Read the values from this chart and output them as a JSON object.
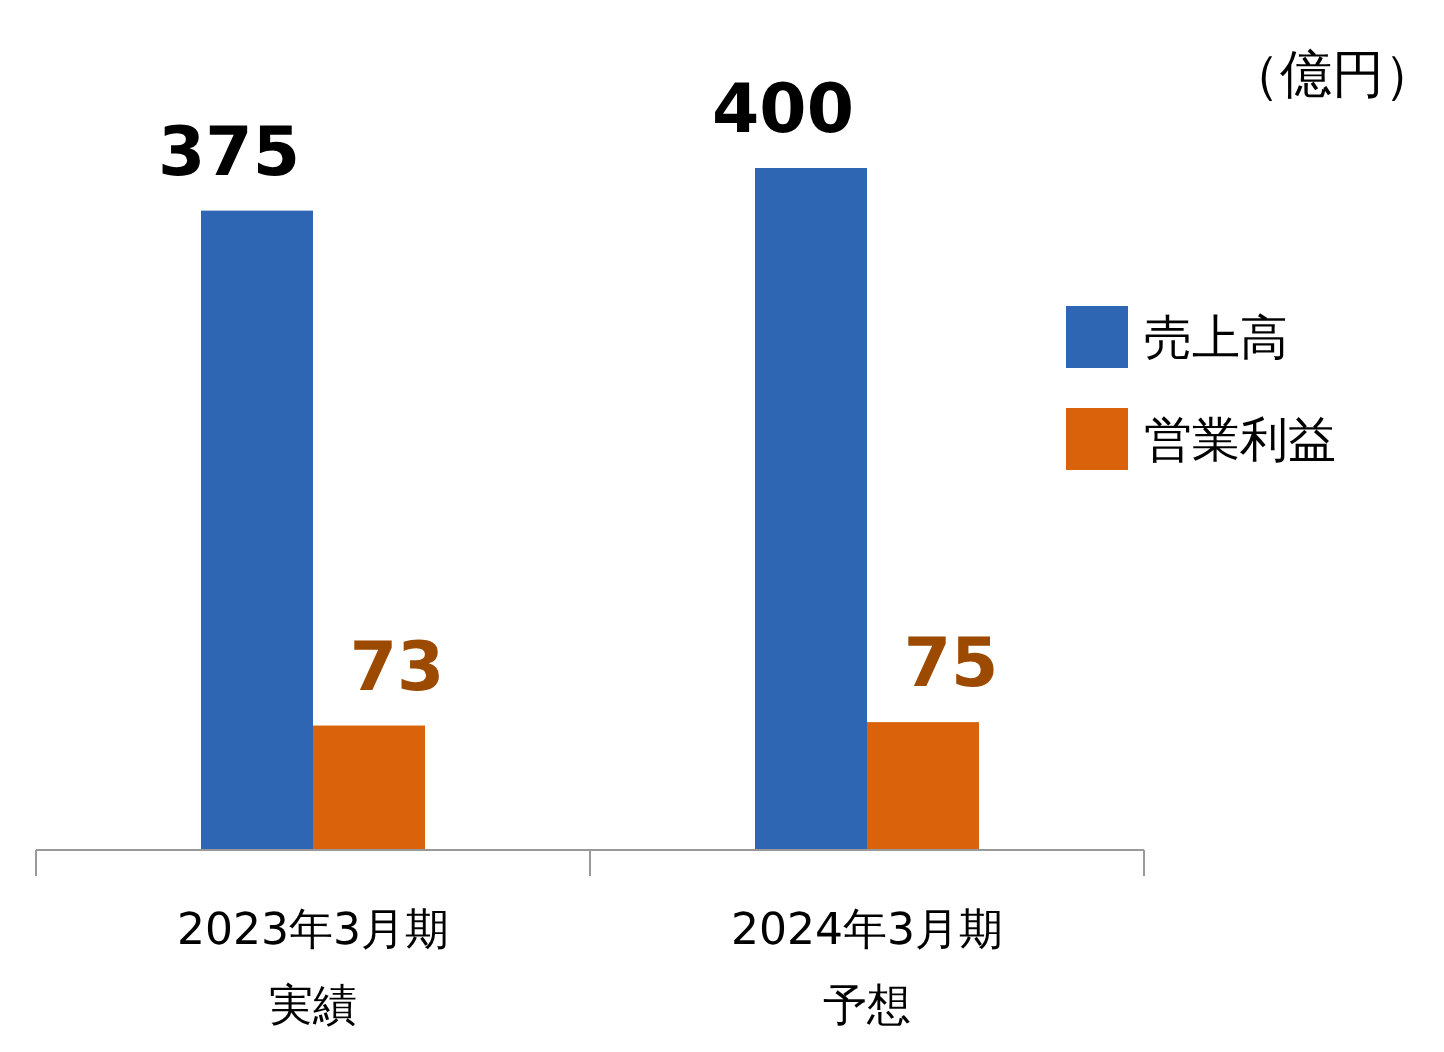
{
  "chart_data": {
    "type": "bar",
    "categories": [
      "2023年3月期実績",
      "2024年3月期予想"
    ],
    "ylabel": "（億円）",
    "series": [
      {
        "name": "売上高",
        "color": "#2f66b3",
        "values": [
          375,
          400
        ]
      },
      {
        "name": "営業利益",
        "color": "#d9620a",
        "values": [
          73,
          75
        ]
      }
    ],
    "data_labels": true,
    "legend": "right"
  }
}
